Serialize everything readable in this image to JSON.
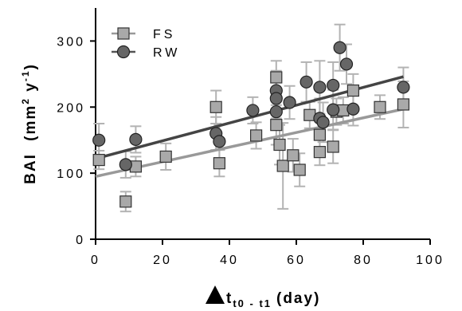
{
  "chart_data": {
    "type": "scatter",
    "xlabel": {
      "main": "t",
      "sub": "t0 - t1",
      "unit": "(day)"
    },
    "ylabel": {
      "main": "BAI",
      "unit_open": "(mm",
      "sup1": "2",
      "mid": " y",
      "sup2": "-1",
      "unit_close": ")"
    },
    "xlim": [
      0,
      100
    ],
    "ylim": [
      0,
      350
    ],
    "x_ticks": [
      0,
      20,
      40,
      60,
      80,
      100
    ],
    "y_ticks": [
      0,
      100,
      200,
      300
    ],
    "grid": false,
    "legend_position": "top-left",
    "series": [
      {
        "name": "FS",
        "marker": "square",
        "color": "#a9a9a9",
        "points": [
          {
            "x": 1,
            "y": 120,
            "err": 14
          },
          {
            "x": 9,
            "y": 57,
            "err": 15
          },
          {
            "x": 12,
            "y": 110,
            "err": 15
          },
          {
            "x": 21,
            "y": 125,
            "err": 20
          },
          {
            "x": 36,
            "y": 200,
            "err": 25
          },
          {
            "x": 37,
            "y": 115,
            "err": 20
          },
          {
            "x": 48,
            "y": 157,
            "err": 20
          },
          {
            "x": 54,
            "y": 245,
            "err": 25
          },
          {
            "x": 54,
            "y": 173,
            "err": 30
          },
          {
            "x": 55,
            "y": 143,
            "err": 30
          },
          {
            "x": 56,
            "y": 111,
            "err": 65
          },
          {
            "x": 59,
            "y": 127,
            "err": 25
          },
          {
            "x": 61,
            "y": 105,
            "err": 25
          },
          {
            "x": 64,
            "y": 188,
            "err": 20
          },
          {
            "x": 67,
            "y": 132,
            "err": 20
          },
          {
            "x": 67,
            "y": 158,
            "err": 20
          },
          {
            "x": 71,
            "y": 140,
            "err": 25
          },
          {
            "x": 72,
            "y": 193,
            "err": 20
          },
          {
            "x": 74,
            "y": 195,
            "err": 20
          },
          {
            "x": 77,
            "y": 225,
            "err": 25
          },
          {
            "x": 85,
            "y": 200,
            "err": 18
          },
          {
            "x": 92,
            "y": 204,
            "err": 35
          }
        ],
        "fit": {
          "x": [
            0,
            92
          ],
          "y": [
            95,
            197
          ]
        }
      },
      {
        "name": "RW",
        "marker": "circle",
        "color": "#666666",
        "points": [
          {
            "x": 1,
            "y": 150,
            "err": 25
          },
          {
            "x": 9,
            "y": 113,
            "err": 20
          },
          {
            "x": 12,
            "y": 151,
            "err": 20
          },
          {
            "x": 36,
            "y": 160,
            "err": 25
          },
          {
            "x": 37,
            "y": 148,
            "err": 25
          },
          {
            "x": 47,
            "y": 195,
            "err": 20
          },
          {
            "x": 54,
            "y": 225,
            "err": 30
          },
          {
            "x": 54,
            "y": 213,
            "err": 30
          },
          {
            "x": 54,
            "y": 193,
            "err": 25
          },
          {
            "x": 58,
            "y": 207,
            "err": 25
          },
          {
            "x": 63,
            "y": 238,
            "err": 30
          },
          {
            "x": 67,
            "y": 230,
            "err": 40
          },
          {
            "x": 67,
            "y": 183,
            "err": 30
          },
          {
            "x": 68,
            "y": 177,
            "err": 30
          },
          {
            "x": 71,
            "y": 233,
            "err": 35
          },
          {
            "x": 71,
            "y": 196,
            "err": 30
          },
          {
            "x": 73,
            "y": 290,
            "err": 35
          },
          {
            "x": 75,
            "y": 265,
            "err": 30
          },
          {
            "x": 77,
            "y": 197,
            "err": 25
          },
          {
            "x": 92,
            "y": 230,
            "err": 30
          }
        ],
        "fit": {
          "x": [
            0,
            92
          ],
          "y": [
            122,
            246
          ]
        }
      }
    ]
  }
}
